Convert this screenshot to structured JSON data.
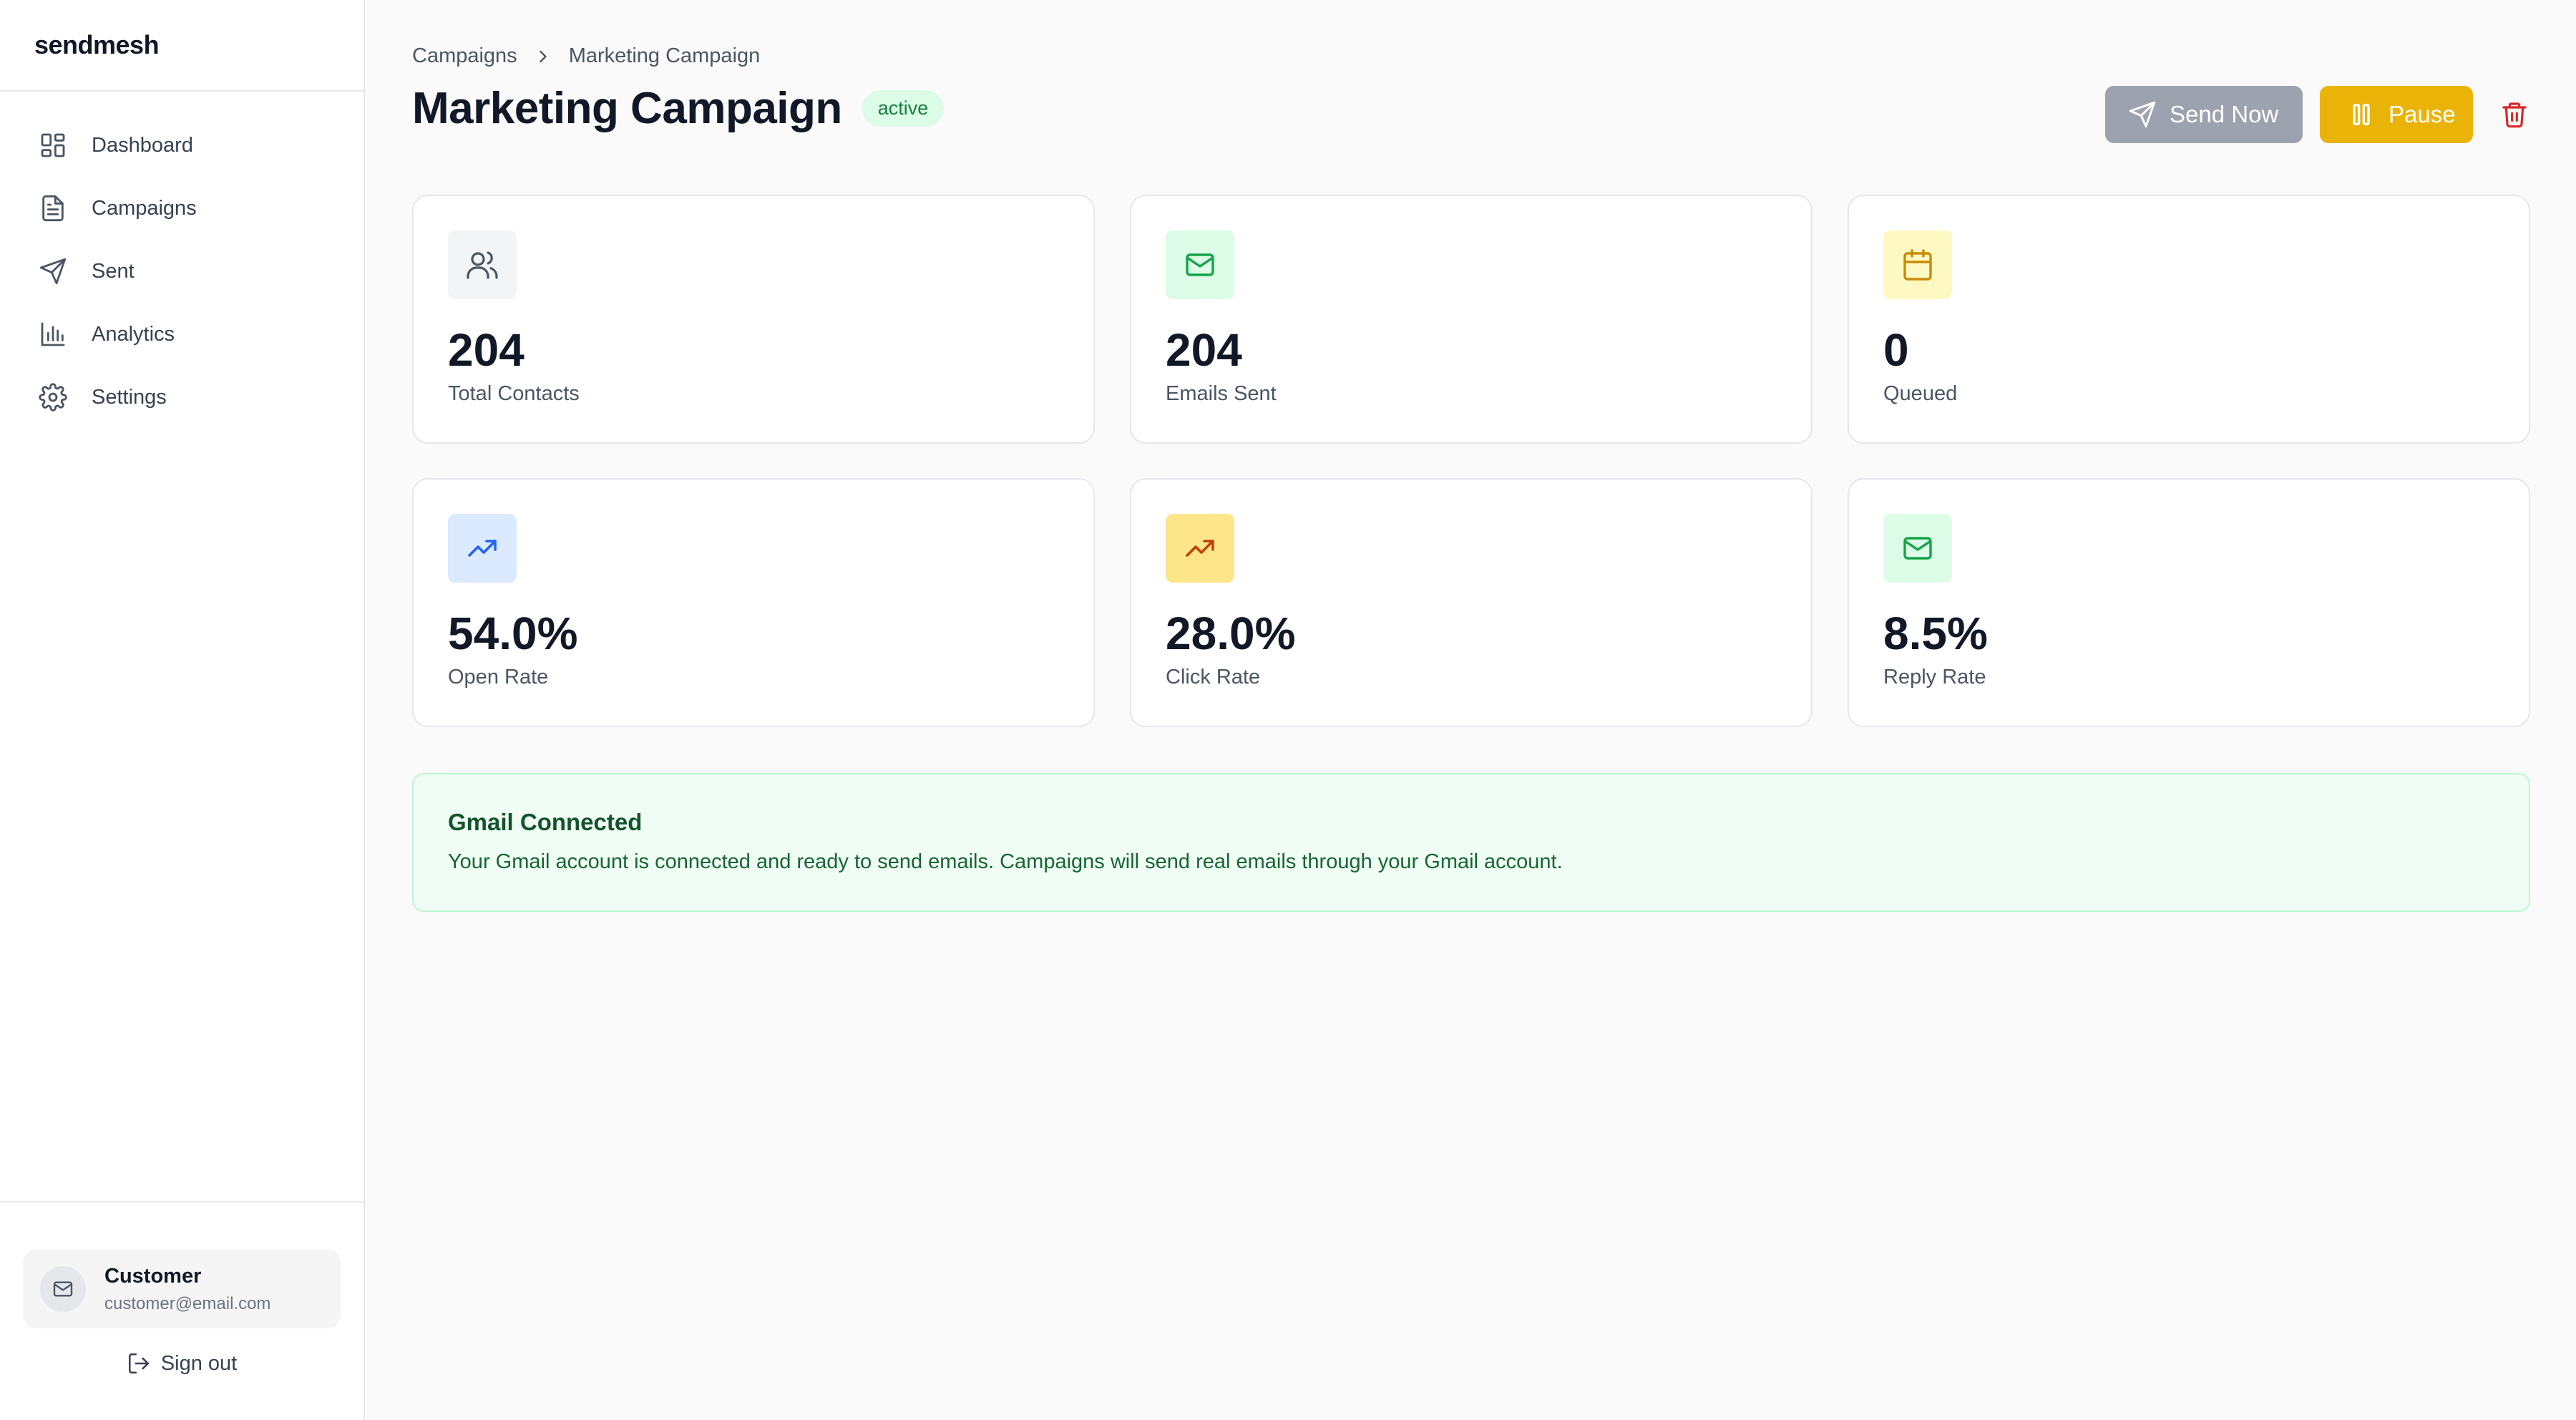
{
  "app": {
    "brand": "sendmesh"
  },
  "sidebar": {
    "items": [
      {
        "label": "Dashboard",
        "icon": "dashboard-icon"
      },
      {
        "label": "Campaigns",
        "icon": "document-icon"
      },
      {
        "label": "Sent",
        "icon": "send-icon"
      },
      {
        "label": "Analytics",
        "icon": "bar-chart-icon"
      },
      {
        "label": "Settings",
        "icon": "gear-icon"
      }
    ],
    "user": {
      "name": "Customer",
      "email": "customer@email.com"
    },
    "sign_out_label": "Sign out"
  },
  "breadcrumb": {
    "parent": "Campaigns",
    "current": "Marketing Campaign"
  },
  "header": {
    "title": "Marketing Campaign",
    "status": "active",
    "send_now_label": "Send Now",
    "pause_label": "Pause"
  },
  "stats": [
    {
      "value": "204",
      "label": "Total Contacts",
      "icon": "users-icon",
      "color": "#4b5563",
      "bg": "#f3f4f6"
    },
    {
      "value": "204",
      "label": "Emails Sent",
      "icon": "mail-icon",
      "color": "#16a34a",
      "bg": "#dcfce7"
    },
    {
      "value": "0",
      "label": "Queued",
      "icon": "calendar-icon",
      "color": "#ca8a04",
      "bg": "#fef9c3"
    },
    {
      "value": "54.0%",
      "label": "Open Rate",
      "icon": "trending-up-icon",
      "color": "#2563eb",
      "bg": "#dbeafe"
    },
    {
      "value": "28.0%",
      "label": "Click Rate",
      "icon": "trending-up-icon",
      "color": "#c2410c",
      "bg": "#fde68a"
    },
    {
      "value": "8.5%",
      "label": "Reply Rate",
      "icon": "mail-icon",
      "color": "#16a34a",
      "bg": "#dcfce7"
    }
  ],
  "notice": {
    "title": "Gmail Connected",
    "text": "Your Gmail account is connected and ready to send emails. Campaigns will send real emails through your Gmail account."
  },
  "colors": {
    "accent_pause": "#eab308",
    "send_disabled": "#9ca3af",
    "delete": "#dc2626",
    "success_bg": "#f0fdf4"
  }
}
